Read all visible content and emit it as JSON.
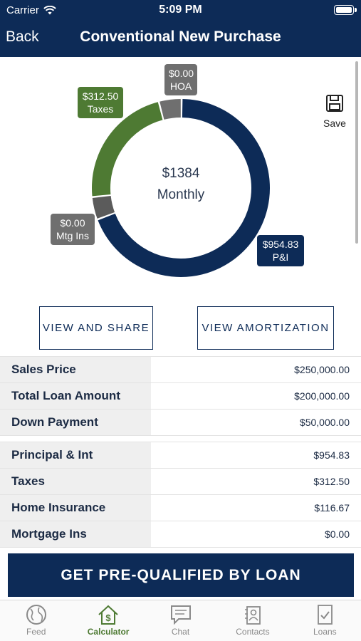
{
  "status": {
    "carrier": "Carrier",
    "time": "5:09 PM"
  },
  "nav": {
    "back_label": "Back",
    "title": "Conventional New Purchase"
  },
  "toolbar": {
    "save_label": "Save"
  },
  "chart_data": {
    "type": "pie",
    "variant": "donut",
    "center_value": "$1384",
    "center_label": "Monthly",
    "slices": [
      {
        "name": "P&I",
        "label": "$954.83",
        "value": 954.83,
        "color": "#0d2b57"
      },
      {
        "name": "Mtg Ins",
        "label": "$0.00",
        "value": 0.0,
        "color": "#5b5b5b"
      },
      {
        "name": "Taxes",
        "label": "$312.50",
        "value": 312.5,
        "color": "#4e7a33"
      },
      {
        "name": "HOA",
        "label": "$0.00",
        "value": 0.0,
        "color": "#6f6f6f"
      }
    ]
  },
  "actions": {
    "share_label": "VIEW AND SHARE",
    "amortization_label": "VIEW AMORTIZATION"
  },
  "loan_summary": [
    {
      "label": "Sales Price",
      "value": "$250,000.00"
    },
    {
      "label": "Total Loan Amount",
      "value": "$200,000.00"
    },
    {
      "label": "Down Payment",
      "value": "$50,000.00"
    }
  ],
  "payment_breakdown": [
    {
      "label": "Principal & Int",
      "value": "$954.83"
    },
    {
      "label": "Taxes",
      "value": "$312.50"
    },
    {
      "label": "Home Insurance",
      "value": "$116.67"
    },
    {
      "label": "Mortgage Ins",
      "value": "$0.00"
    }
  ],
  "cta": {
    "label": "GET PRE-QUALIFIED BY LOAN"
  },
  "tabs": [
    {
      "label": "Feed",
      "icon": "globe-icon"
    },
    {
      "label": "Calculator",
      "icon": "house-dollar-icon"
    },
    {
      "label": "Chat",
      "icon": "chat-bubble-icon"
    },
    {
      "label": "Contacts",
      "icon": "contacts-icon"
    },
    {
      "label": "Loans",
      "icon": "document-check-icon"
    }
  ],
  "colors": {
    "brand_navy": "#0d2b57",
    "accent_green": "#4e7a33",
    "gray": "#6f6f6f"
  }
}
